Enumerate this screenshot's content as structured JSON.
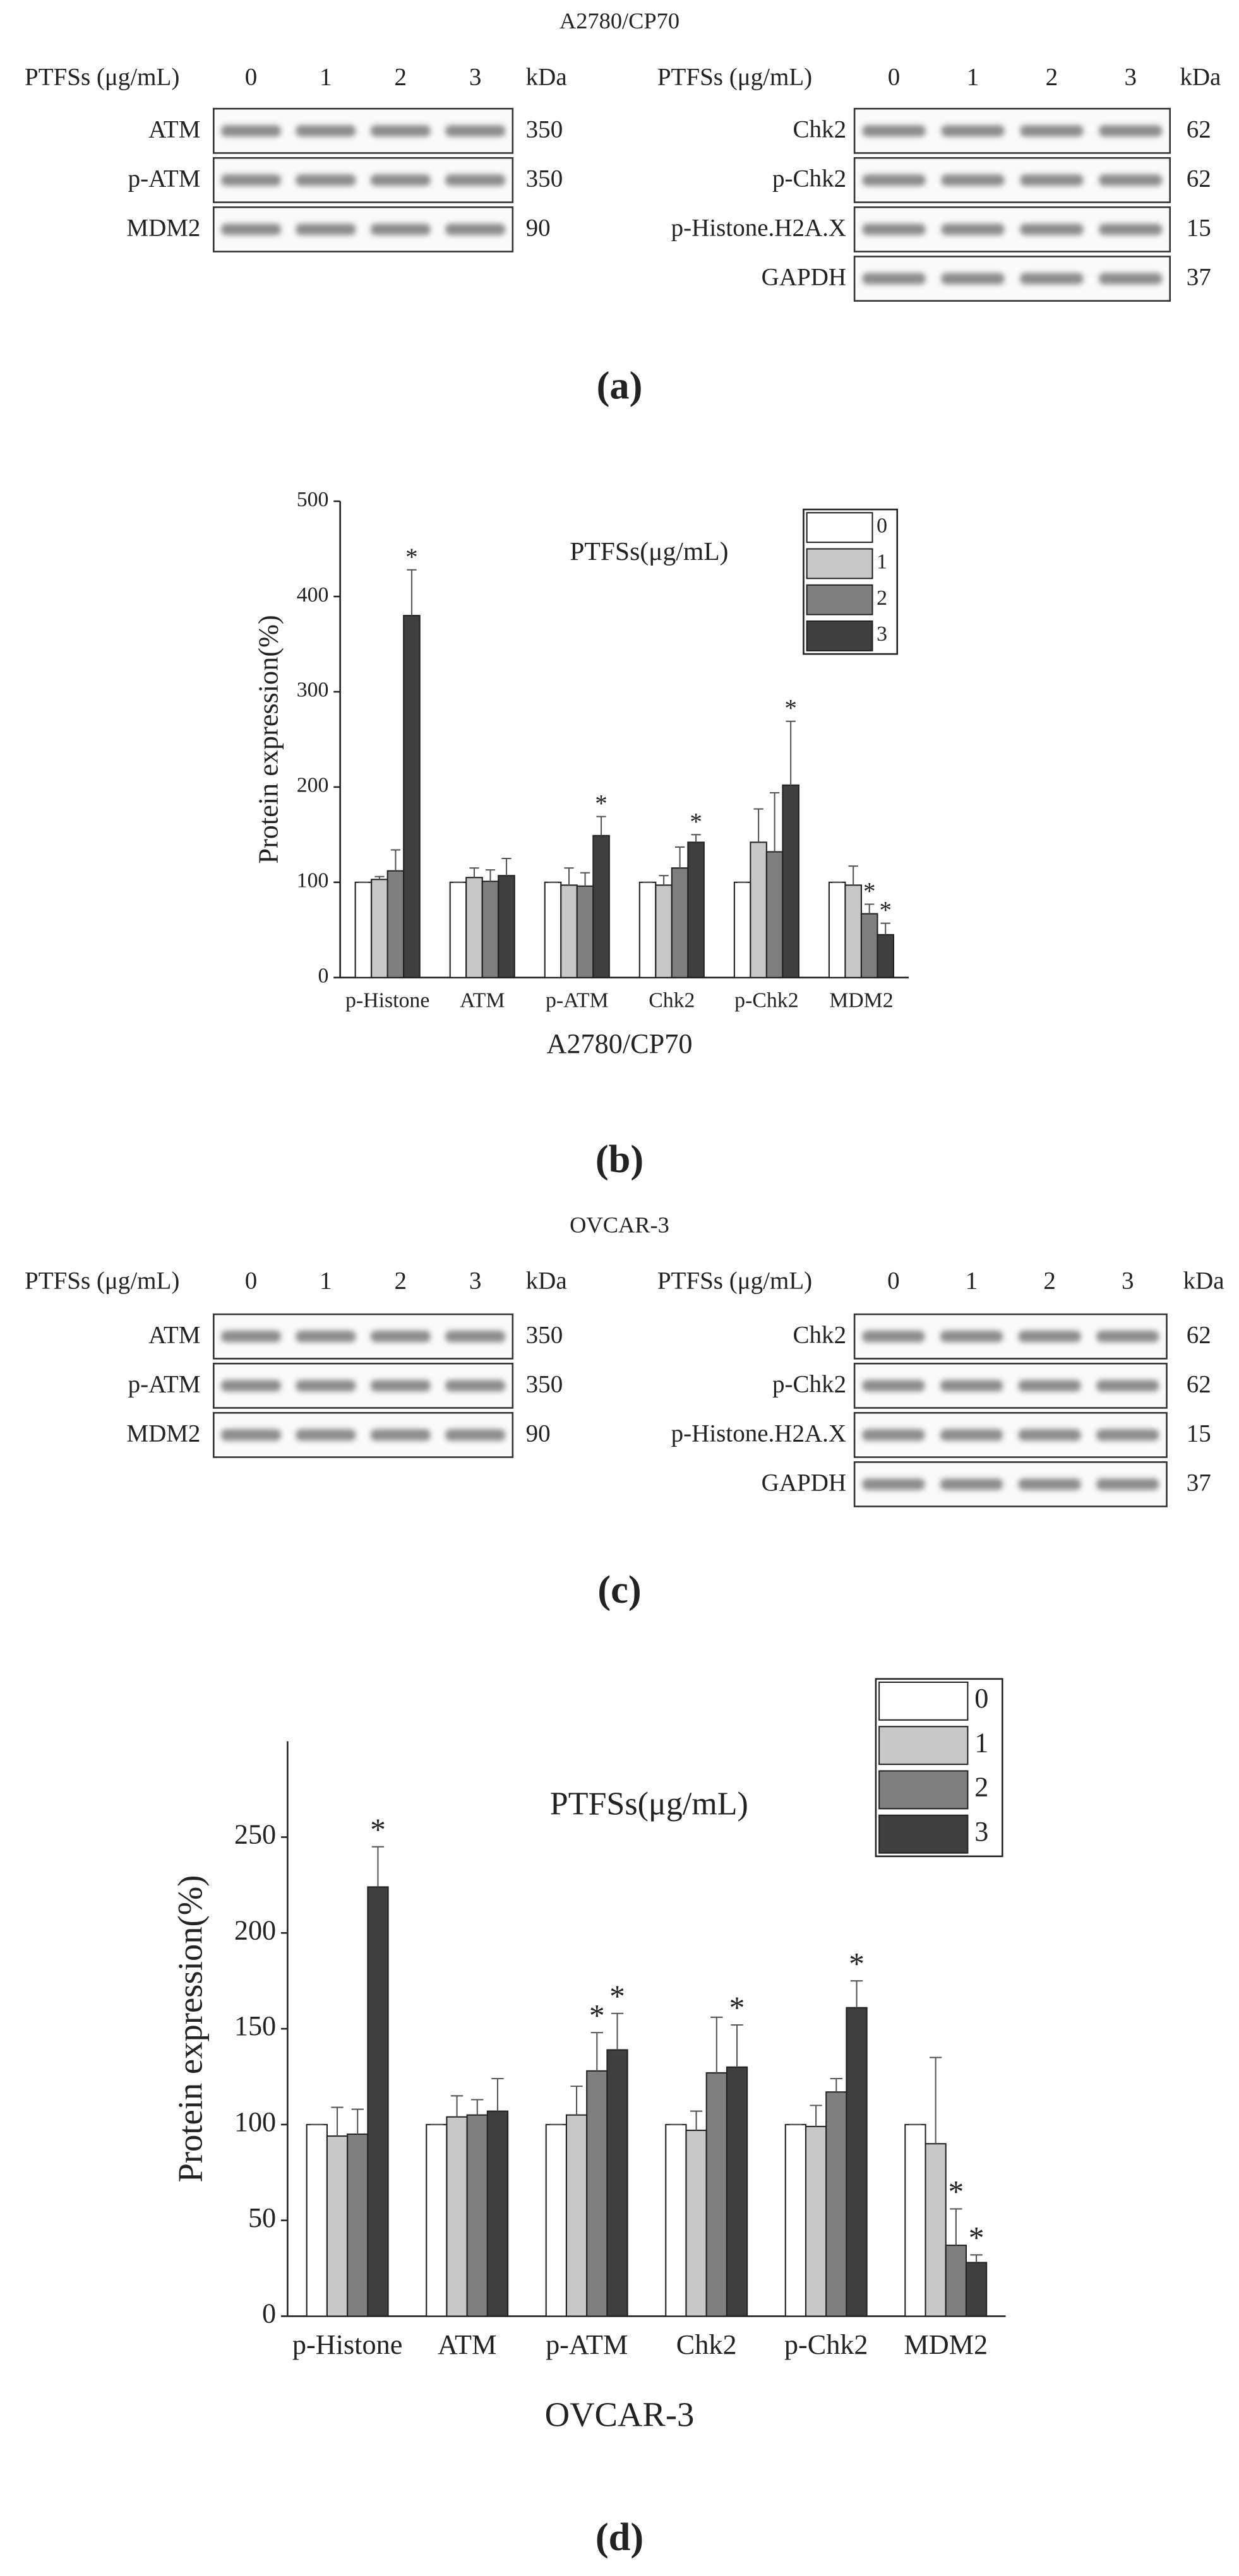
{
  "blots": [
    {
      "label": "(a)",
      "title": "A2780/CP70",
      "panels": [
        {
          "header": "PTFSs  (μg/mL)",
          "doses": [
            0,
            1,
            2,
            3
          ],
          "unit": "kDa",
          "rows": [
            {
              "name": "ATM",
              "kda": 350
            },
            {
              "name": "p-ATM",
              "kda": 350
            },
            {
              "name": "MDM2",
              "kda": 90
            }
          ]
        },
        {
          "header": "PTFSs  (μg/mL)",
          "doses": [
            0,
            1,
            2,
            3
          ],
          "unit": "kDa",
          "rows": [
            {
              "name": "Chk2",
              "kda": 62
            },
            {
              "name": "p-Chk2",
              "kda": 62
            },
            {
              "name": "p-Histone.H2A.X",
              "kda": 15
            },
            {
              "name": "GAPDH",
              "kda": 37
            }
          ]
        }
      ]
    },
    {
      "label": "(c)",
      "title": "OVCAR-3",
      "panels": [
        {
          "header": "PTFSs  (μg/mL)",
          "doses": [
            0,
            1,
            2,
            3
          ],
          "unit": "kDa",
          "rows": [
            {
              "name": "ATM",
              "kda": 350
            },
            {
              "name": "p-ATM",
              "kda": 350
            },
            {
              "name": "MDM2",
              "kda": 90
            }
          ]
        },
        {
          "header": "PTFSs  (μg/mL)",
          "doses": [
            0,
            1,
            2,
            3
          ],
          "unit": "kDa",
          "rows": [
            {
              "name": "Chk2",
              "kda": 62
            },
            {
              "name": "p-Chk2",
              "kda": 62
            },
            {
              "name": "p-Histone.H2A.X",
              "kda": 15
            },
            {
              "name": "GAPDH",
              "kda": 37
            }
          ]
        }
      ]
    }
  ],
  "chart_data": [
    {
      "type": "bar",
      "panel_label": "(b)",
      "legend_title": "PTFSs(μg/mL)",
      "xlabel": "A2780/CP70",
      "ylabel": "Protein expression(%)",
      "categories": [
        "p-Histone",
        "ATM",
        "p-ATM",
        "Chk2",
        "p-Chk2",
        "MDM2"
      ],
      "ylim": [
        0,
        500
      ],
      "yticks": [
        0,
        100,
        200,
        300,
        400,
        500
      ],
      "legend": "upper right",
      "series": [
        {
          "name": "0",
          "color": "#ffffff",
          "values": [
            100,
            100,
            100,
            100,
            100,
            100
          ],
          "errors": [
            0,
            0,
            0,
            0,
            0,
            0
          ]
        },
        {
          "name": "1",
          "color": "#c8c8c8",
          "values": [
            103,
            105,
            97,
            97,
            142,
            97
          ],
          "errors": [
            3,
            10,
            18,
            10,
            35,
            20
          ]
        },
        {
          "name": "2",
          "color": "#7f7f7f",
          "values": [
            112,
            101,
            96,
            115,
            132,
            67
          ],
          "errors": [
            22,
            12,
            14,
            22,
            62,
            10
          ]
        },
        {
          "name": "3",
          "color": "#3f3f3f",
          "values": [
            380,
            107,
            149,
            142,
            202,
            45
          ],
          "errors": [
            48,
            18,
            20,
            8,
            67,
            12
          ]
        }
      ],
      "annotations": [
        {
          "text": "*",
          "series": 3,
          "category": 0
        },
        {
          "text": "*",
          "series": 3,
          "category": 2
        },
        {
          "text": "*",
          "series": 3,
          "category": 3
        },
        {
          "text": "*",
          "series": 3,
          "category": 4
        },
        {
          "text": "*",
          "series": 2,
          "category": 5
        },
        {
          "text": "*",
          "series": 3,
          "category": 5
        }
      ]
    },
    {
      "type": "bar",
      "panel_label": "(d)",
      "legend_title": "PTFSs(μg/mL)",
      "xlabel": "OVCAR-3",
      "ylabel": "Protein expression(%)",
      "categories": [
        "p-Histone",
        "ATM",
        "p-ATM",
        "Chk2",
        "p-Chk2",
        "MDM2"
      ],
      "ylim": [
        0,
        300
      ],
      "yticks": [
        0,
        50,
        100,
        150,
        200,
        250
      ],
      "legend": "upper right",
      "series": [
        {
          "name": "0",
          "color": "#ffffff",
          "values": [
            100,
            100,
            100,
            100,
            100,
            100
          ],
          "errors": [
            0,
            0,
            0,
            0,
            0,
            0
          ]
        },
        {
          "name": "1",
          "color": "#c8c8c8",
          "values": [
            94,
            104,
            105,
            97,
            99,
            90
          ],
          "errors": [
            15,
            11,
            15,
            10,
            11,
            45
          ]
        },
        {
          "name": "2",
          "color": "#7f7f7f",
          "values": [
            95,
            105,
            128,
            127,
            117,
            37
          ],
          "errors": [
            13,
            8,
            20,
            29,
            7,
            19
          ]
        },
        {
          "name": "3",
          "color": "#3f3f3f",
          "values": [
            224,
            107,
            139,
            130,
            161,
            28
          ],
          "errors": [
            21,
            17,
            19,
            22,
            14,
            4
          ]
        }
      ],
      "annotations": [
        {
          "text": "*",
          "series": 3,
          "category": 0
        },
        {
          "text": "*",
          "series": 2,
          "category": 2
        },
        {
          "text": "*",
          "series": 3,
          "category": 2
        },
        {
          "text": "*",
          "series": 3,
          "category": 3
        },
        {
          "text": "*",
          "series": 3,
          "category": 4
        },
        {
          "text": "*",
          "series": 2,
          "category": 5
        },
        {
          "text": "*",
          "series": 3,
          "category": 5
        }
      ]
    }
  ]
}
